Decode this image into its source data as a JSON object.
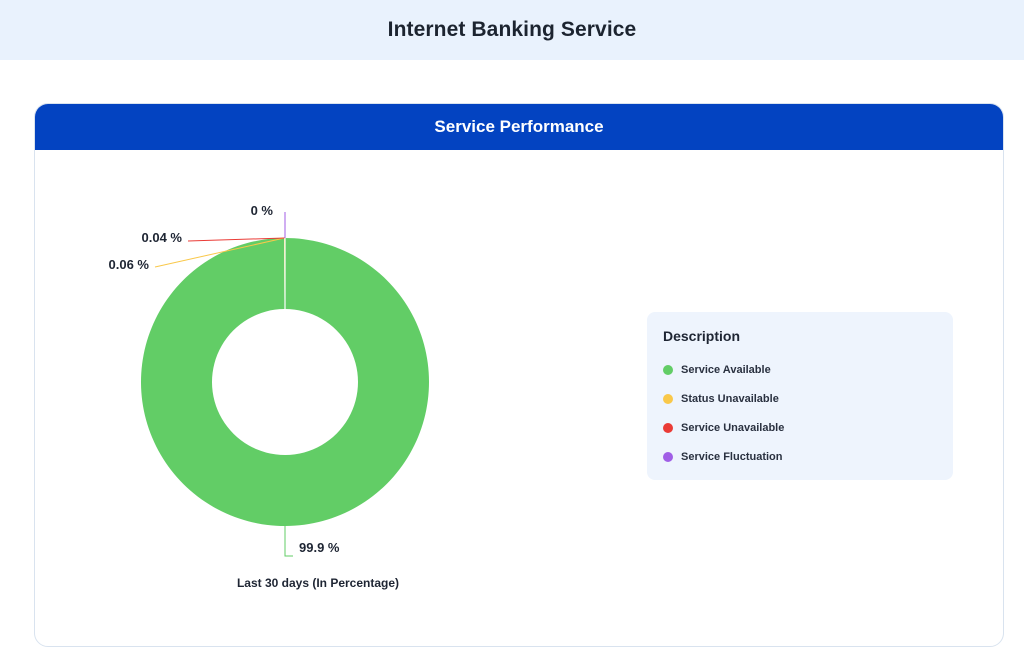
{
  "page": {
    "title": "Internet Banking Service"
  },
  "card": {
    "title": "Service Performance",
    "caption": "Last 30 days (In Percentage)"
  },
  "legend": {
    "title": "Description",
    "items": [
      {
        "label": "Service Available",
        "color": "#62cd66"
      },
      {
        "label": "Status Unavailable",
        "color": "#f9c84a"
      },
      {
        "label": "Service Unavailable",
        "color": "#ea3b36"
      },
      {
        "label": "Service Fluctuation",
        "color": "#a05ee6"
      }
    ]
  },
  "chart_data": {
    "type": "pie",
    "categories": [
      "Service Available",
      "Status Unavailable",
      "Service Unavailable",
      "Service Fluctuation"
    ],
    "values": [
      99.9,
      0.06,
      0.04,
      0
    ],
    "data_labels": [
      "99.9 %",
      "0.06 %",
      "0.04 %",
      "0 %"
    ],
    "colors": [
      "#62cd66",
      "#f9c84a",
      "#ea3b36",
      "#a05ee6"
    ],
    "legend_position": "right"
  }
}
